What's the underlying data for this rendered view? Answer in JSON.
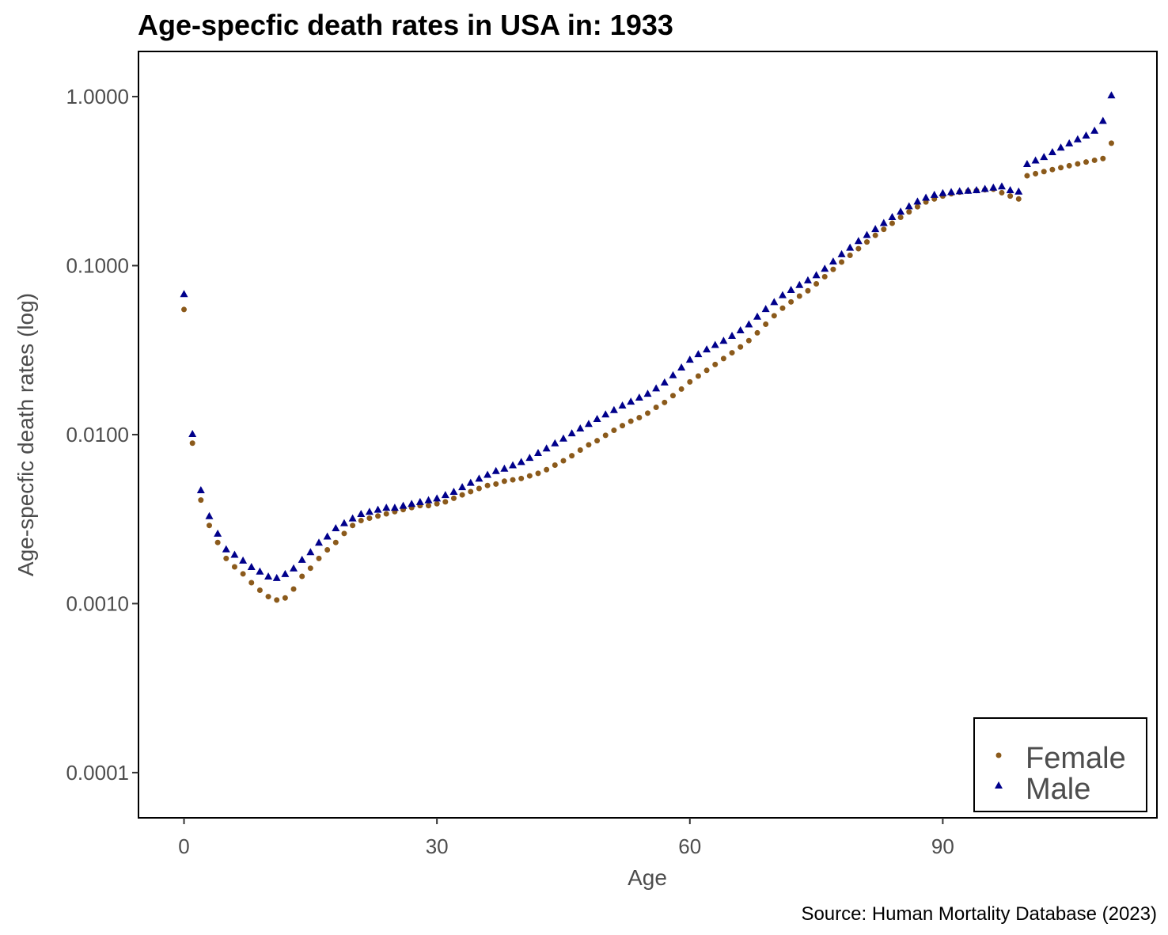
{
  "colors": {
    "female": "#8B5A1B",
    "male": "#00008B",
    "axis": "#000000",
    "text": "#4d4d4d"
  },
  "chart_data": {
    "type": "scatter",
    "title": "Age-specfic death rates in USA in: 1933",
    "xlabel": "Age",
    "ylabel": "Age-specfic death rates (log)",
    "caption": "Source: Human Mortality Database (2023)",
    "y_scale": "log10",
    "xlim": [
      -5.4,
      115.4
    ],
    "ylim": [
      5.4e-05,
      1.85
    ],
    "x_ticks": [
      0,
      30,
      60,
      90
    ],
    "x_tick_labels": [
      "0",
      "30",
      "60",
      "90"
    ],
    "y_ticks": [
      0.0001,
      0.001,
      0.01,
      0.1,
      1
    ],
    "y_tick_labels": [
      "0.0001",
      "0.0010",
      "0.0100",
      "0.1000",
      "1.0000"
    ],
    "grid": false,
    "legend_position": "bottom-right",
    "legend_entries": [
      "Female",
      "Male"
    ],
    "series": [
      {
        "name": "Female",
        "marker": "circle",
        "x": [
          0,
          1,
          2,
          3,
          4,
          5,
          6,
          7,
          8,
          9,
          10,
          11,
          12,
          13,
          14,
          15,
          16,
          17,
          18,
          19,
          20,
          21,
          22,
          23,
          24,
          25,
          26,
          27,
          28,
          29,
          30,
          31,
          32,
          33,
          34,
          35,
          36,
          37,
          38,
          39,
          40,
          41,
          42,
          43,
          44,
          45,
          46,
          47,
          48,
          49,
          50,
          51,
          52,
          53,
          54,
          55,
          56,
          57,
          58,
          59,
          60,
          61,
          62,
          63,
          64,
          65,
          66,
          67,
          68,
          69,
          70,
          71,
          72,
          73,
          74,
          75,
          76,
          77,
          78,
          79,
          80,
          81,
          82,
          83,
          84,
          85,
          86,
          87,
          88,
          89,
          90,
          91,
          92,
          93,
          94,
          95,
          96,
          97,
          98,
          99,
          100,
          101,
          102,
          103,
          104,
          105,
          106,
          107,
          108,
          109,
          110
        ],
        "y": [
          0.055,
          0.0089,
          0.0041,
          0.0029,
          0.0023,
          0.00185,
          0.00165,
          0.0015,
          0.00133,
          0.0012,
          0.0011,
          0.00105,
          0.00108,
          0.00122,
          0.00145,
          0.00162,
          0.00185,
          0.00208,
          0.0023,
          0.0026,
          0.0029,
          0.0031,
          0.0032,
          0.0033,
          0.0034,
          0.0035,
          0.0036,
          0.0037,
          0.0038,
          0.0038,
          0.0039,
          0.004,
          0.0042,
          0.0044,
          0.0046,
          0.0048,
          0.005,
          0.0051,
          0.0053,
          0.0054,
          0.0055,
          0.0057,
          0.0059,
          0.0062,
          0.0066,
          0.007,
          0.0075,
          0.0081,
          0.0087,
          0.0092,
          0.0099,
          0.0106,
          0.0113,
          0.012,
          0.0126,
          0.0134,
          0.0145,
          0.0155,
          0.017,
          0.0186,
          0.0205,
          0.0222,
          0.024,
          0.026,
          0.0282,
          0.0305,
          0.033,
          0.036,
          0.04,
          0.045,
          0.0505,
          0.056,
          0.061,
          0.066,
          0.071,
          0.078,
          0.086,
          0.095,
          0.105,
          0.115,
          0.126,
          0.138,
          0.151,
          0.164,
          0.178,
          0.193,
          0.208,
          0.223,
          0.238,
          0.248,
          0.258,
          0.266,
          0.272,
          0.276,
          0.278,
          0.281,
          0.283,
          0.27,
          0.258,
          0.248,
          0.34,
          0.35,
          0.36,
          0.37,
          0.38,
          0.39,
          0.4,
          0.41,
          0.42,
          0.43,
          0.53
        ]
      },
      {
        "name": "Male",
        "marker": "triangle",
        "x": [
          0,
          1,
          2,
          3,
          4,
          5,
          6,
          7,
          8,
          9,
          10,
          11,
          12,
          13,
          14,
          15,
          16,
          17,
          18,
          19,
          20,
          21,
          22,
          23,
          24,
          25,
          26,
          27,
          28,
          29,
          30,
          31,
          32,
          33,
          34,
          35,
          36,
          37,
          38,
          39,
          40,
          41,
          42,
          43,
          44,
          45,
          46,
          47,
          48,
          49,
          50,
          51,
          52,
          53,
          54,
          55,
          56,
          57,
          58,
          59,
          60,
          61,
          62,
          63,
          64,
          65,
          66,
          67,
          68,
          69,
          70,
          71,
          72,
          73,
          74,
          75,
          76,
          77,
          78,
          79,
          80,
          81,
          82,
          83,
          84,
          85,
          86,
          87,
          88,
          89,
          90,
          91,
          92,
          93,
          94,
          95,
          96,
          97,
          98,
          99,
          100,
          101,
          102,
          103,
          104,
          105,
          106,
          107,
          108,
          109,
          110
        ],
        "y": [
          0.068,
          0.0101,
          0.0047,
          0.0033,
          0.0026,
          0.0021,
          0.00195,
          0.0018,
          0.00165,
          0.00155,
          0.00145,
          0.00142,
          0.0015,
          0.00162,
          0.00182,
          0.00202,
          0.0023,
          0.0025,
          0.0028,
          0.003,
          0.0032,
          0.0034,
          0.0035,
          0.0036,
          0.0037,
          0.0037,
          0.0038,
          0.0039,
          0.004,
          0.0041,
          0.0042,
          0.0044,
          0.0046,
          0.0049,
          0.0052,
          0.0055,
          0.0058,
          0.0061,
          0.0063,
          0.0066,
          0.0069,
          0.0073,
          0.0078,
          0.0083,
          0.0089,
          0.0095,
          0.0102,
          0.0109,
          0.0116,
          0.0124,
          0.0132,
          0.014,
          0.0149,
          0.0157,
          0.0166,
          0.0175,
          0.0188,
          0.0204,
          0.0225,
          0.025,
          0.0278,
          0.03,
          0.032,
          0.034,
          0.036,
          0.0385,
          0.0415,
          0.045,
          0.05,
          0.0555,
          0.061,
          0.067,
          0.072,
          0.077,
          0.082,
          0.088,
          0.096,
          0.106,
          0.117,
          0.128,
          0.14,
          0.152,
          0.165,
          0.179,
          0.194,
          0.209,
          0.225,
          0.24,
          0.253,
          0.263,
          0.269,
          0.273,
          0.276,
          0.278,
          0.28,
          0.285,
          0.29,
          0.295,
          0.28,
          0.275,
          0.4,
          0.42,
          0.44,
          0.47,
          0.5,
          0.53,
          0.56,
          0.59,
          0.63,
          0.72,
          1.02
        ]
      }
    ]
  }
}
